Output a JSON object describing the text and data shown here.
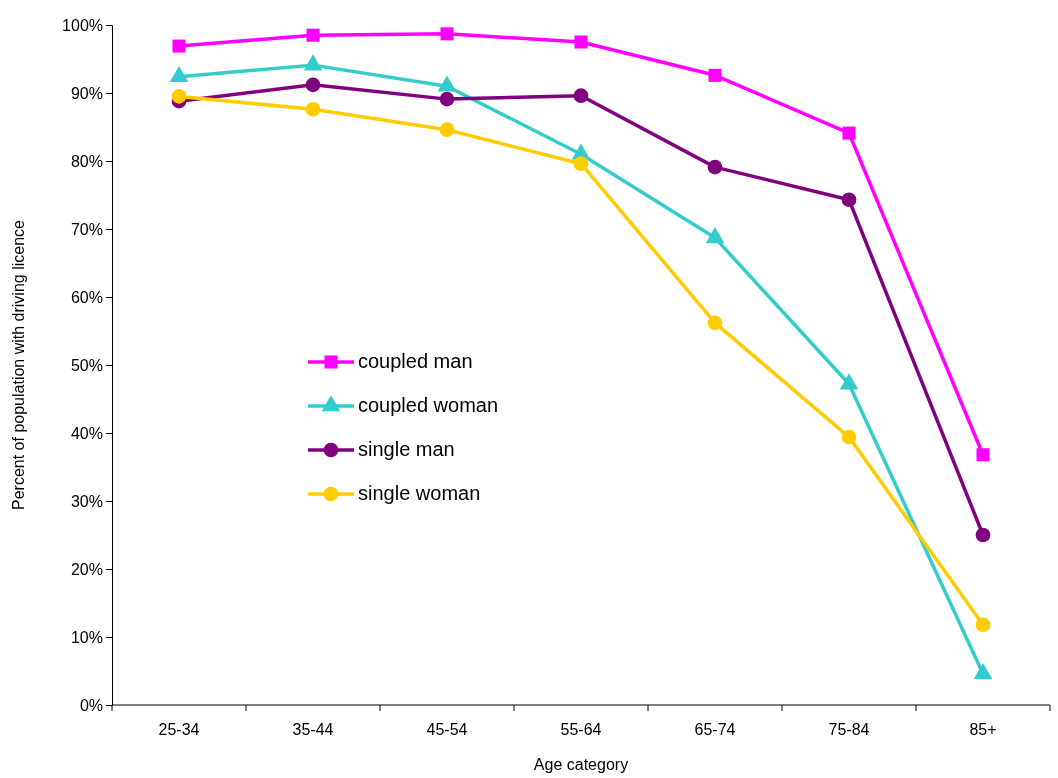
{
  "chart_data": {
    "type": "line",
    "xlabel": "Age category",
    "ylabel": "Percent of population with driving licence",
    "categories": [
      "25-34",
      "35-44",
      "45-54",
      "55-64",
      "65-74",
      "75-84",
      "85+"
    ],
    "series": [
      {
        "name": "coupled man",
        "color": "#ff00ff",
        "marker": "square",
        "values": [
          96.9,
          98.5,
          98.7,
          97.5,
          92.6,
          84.1,
          36.8
        ]
      },
      {
        "name": "coupled woman",
        "color": "#33cccc",
        "marker": "triangle",
        "values": [
          92.4,
          94.1,
          91.0,
          81.0,
          68.7,
          47.2,
          4.6
        ]
      },
      {
        "name": "single man",
        "color": "#800080",
        "marker": "circle",
        "values": [
          88.8,
          91.2,
          89.1,
          89.6,
          79.1,
          74.3,
          25.0
        ]
      },
      {
        "name": "single woman",
        "color": "#ffcc00",
        "marker": "circle",
        "values": [
          89.5,
          87.6,
          84.6,
          79.6,
          56.2,
          39.4,
          11.8
        ]
      }
    ],
    "ylim": [
      0,
      100
    ],
    "yticks": [
      {
        "value": 0,
        "label": "0%"
      },
      {
        "value": 10,
        "label": "10%"
      },
      {
        "value": 20,
        "label": "20%"
      },
      {
        "value": 30,
        "label": "30%"
      },
      {
        "value": 40,
        "label": "40%"
      },
      {
        "value": 50,
        "label": "50%"
      },
      {
        "value": 60,
        "label": "60%"
      },
      {
        "value": 70,
        "label": "70%"
      },
      {
        "value": 80,
        "label": "80%"
      },
      {
        "value": 90,
        "label": "90%"
      },
      {
        "value": 100,
        "label": "100%"
      }
    ],
    "grid": false,
    "legend": "left",
    "line_style": "solid"
  }
}
